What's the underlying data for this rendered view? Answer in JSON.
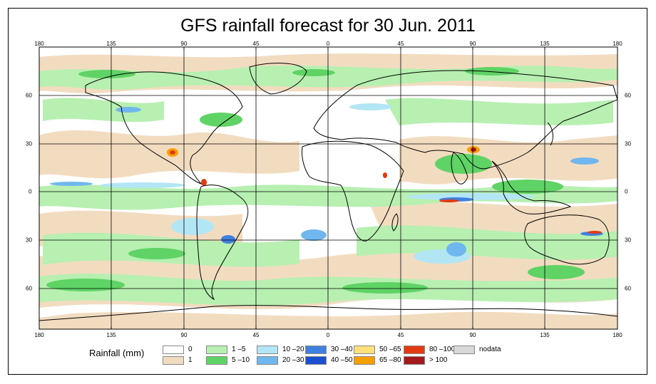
{
  "title": "GFS rainfall forecast for 30 Jun. 2011",
  "top_lon_labels": [
    "180",
    "135",
    "90",
    "45",
    "0",
    "45",
    "90",
    "135",
    "180"
  ],
  "bottom_lon_labels": [
    "180",
    "135",
    "90",
    "45",
    "0",
    "45",
    "90",
    "135",
    "180"
  ],
  "left_lat_labels": [
    "60",
    "30",
    "0",
    "30",
    "60"
  ],
  "right_lat_labels": [
    "60",
    "30",
    "0",
    "30",
    "60"
  ],
  "legend": {
    "title": "Rainfall (mm)",
    "items": [
      {
        "label": "0",
        "color": "#ffffff"
      },
      {
        "label": "1",
        "color": "#f2dcc0"
      },
      {
        "label": "1 –5",
        "color": "#b7f0b1"
      },
      {
        "label": "5 –10",
        "color": "#5fd365"
      },
      {
        "label": "10 –20",
        "color": "#b3e6f5"
      },
      {
        "label": "20 –30",
        "color": "#6fb7ee"
      },
      {
        "label": "30 –40",
        "color": "#3f7fe0"
      },
      {
        "label": "40 –50",
        "color": "#1c4fd0"
      },
      {
        "label": "50 –65",
        "color": "#ffe07a"
      },
      {
        "label": "65 –80",
        "color": "#f5a000"
      },
      {
        "label": "80 –100",
        "color": "#e33a12"
      },
      {
        "label": "> 100",
        "color": "#a41a1a"
      },
      {
        "label": "nodata",
        "color": "#d8d8d8"
      }
    ]
  }
}
